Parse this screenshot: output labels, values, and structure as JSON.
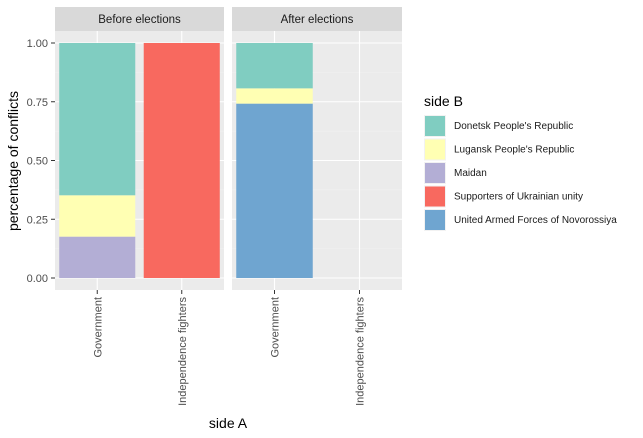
{
  "chart_data": {
    "type": "bar",
    "stacked": true,
    "xlabel": "side A",
    "ylabel": "percentage of conflicts",
    "ylim": [
      0,
      1
    ],
    "yticks": [
      "0.00",
      "0.25",
      "0.50",
      "0.75",
      "1.00"
    ],
    "ytick_values": [
      0,
      0.25,
      0.5,
      0.75,
      1
    ],
    "categories": [
      "Government",
      "Independence fighters"
    ],
    "legend": {
      "title": "side B",
      "position": "right",
      "entries": [
        {
          "label": "Donetsk People's Republic",
          "color": "#80cdc1"
        },
        {
          "label": "Lugansk People's Republic",
          "color": "#ffffb3"
        },
        {
          "label": "Maidan",
          "color": "#b3aed5"
        },
        {
          "label": "Supporters of Ukrainian unity",
          "color": "#f8695f"
        },
        {
          "label": "United Armed Forces of Novorossiya",
          "color": "#6fa5d0"
        }
      ]
    },
    "panels": [
      {
        "title": "Before elections",
        "bars": [
          {
            "category": "Government",
            "segments": [
              {
                "series": "Maidan",
                "value": 0.176
              },
              {
                "series": "Lugansk People's Republic",
                "value": 0.176
              },
              {
                "series": "Donetsk People's Republic",
                "value": 0.648
              }
            ]
          },
          {
            "category": "Independence fighters",
            "segments": [
              {
                "series": "Supporters of Ukrainian unity",
                "value": 1.0
              }
            ]
          }
        ]
      },
      {
        "title": "After elections",
        "bars": [
          {
            "category": "Government",
            "segments": [
              {
                "series": "United Armed Forces of Novorossiya",
                "value": 0.742
              },
              {
                "series": "Lugansk People's Republic",
                "value": 0.065
              },
              {
                "series": "Donetsk People's Republic",
                "value": 0.193
              }
            ]
          },
          {
            "category": "Independence fighters",
            "segments": []
          }
        ]
      }
    ],
    "grid": true,
    "colors": {
      "panel_bg": "#ebebeb",
      "strip_bg": "#d9d9d9",
      "grid_major": "#ffffff",
      "grid_minor": "#f2f2f2"
    }
  }
}
